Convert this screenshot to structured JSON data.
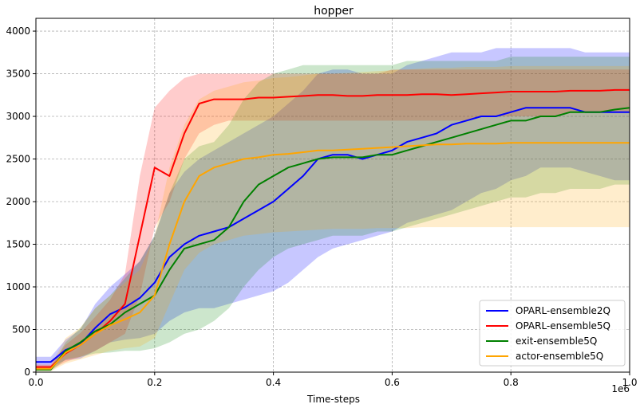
{
  "chart_data": {
    "type": "line",
    "title": "hopper",
    "xlabel": "Time-steps",
    "ylabel": "",
    "x_offset_label": "1e6",
    "xlim": [
      0,
      1.0
    ],
    "ylim": [
      0,
      4150
    ],
    "x_ticks": [
      0.0,
      0.2,
      0.4,
      0.6,
      0.8,
      1.0
    ],
    "x_tick_labels": [
      "0.0",
      "0.2",
      "0.4",
      "0.6",
      "0.8",
      "1.0"
    ],
    "y_ticks": [
      0,
      500,
      1000,
      1500,
      2000,
      2500,
      3000,
      3500,
      4000
    ],
    "y_tick_labels": [
      "0",
      "500",
      "1000",
      "1500",
      "2000",
      "2500",
      "3000",
      "3500",
      "4000"
    ],
    "grid": true,
    "legend_position": "lower-right",
    "x": [
      0.0,
      0.025,
      0.05,
      0.075,
      0.1,
      0.125,
      0.15,
      0.175,
      0.2,
      0.225,
      0.25,
      0.275,
      0.3,
      0.325,
      0.35,
      0.375,
      0.4,
      0.425,
      0.45,
      0.475,
      0.5,
      0.525,
      0.55,
      0.575,
      0.6,
      0.625,
      0.65,
      0.675,
      0.7,
      0.725,
      0.75,
      0.775,
      0.8,
      0.825,
      0.85,
      0.875,
      0.9,
      0.925,
      0.95,
      0.975,
      1.0
    ],
    "series": [
      {
        "name": "OPARL-ensemble2Q",
        "color": "#0000ff",
        "fill_opacity": 0.22,
        "values": [
          120,
          120,
          260,
          330,
          520,
          680,
          760,
          870,
          1050,
          1350,
          1500,
          1600,
          1650,
          1700,
          1800,
          1900,
          2000,
          2150,
          2300,
          2500,
          2550,
          2550,
          2500,
          2550,
          2600,
          2700,
          2750,
          2800,
          2900,
          2950,
          3000,
          3000,
          3050,
          3100,
          3100,
          3100,
          3100,
          3050,
          3050,
          3050,
          3050
        ],
        "lower": [
          60,
          60,
          140,
          160,
          250,
          350,
          380,
          400,
          450,
          600,
          700,
          750,
          750,
          800,
          850,
          900,
          950,
          1050,
          1200,
          1350,
          1450,
          1500,
          1550,
          1600,
          1650,
          1750,
          1800,
          1850,
          1900,
          2000,
          2100,
          2150,
          2250,
          2300,
          2400,
          2400,
          2400,
          2350,
          2300,
          2250,
          2250
        ],
        "upper": [
          180,
          180,
          380,
          500,
          800,
          1000,
          1150,
          1300,
          1600,
          2100,
          2350,
          2500,
          2600,
          2700,
          2800,
          2900,
          3000,
          3150,
          3300,
          3500,
          3550,
          3550,
          3500,
          3500,
          3500,
          3600,
          3650,
          3700,
          3750,
          3750,
          3750,
          3800,
          3800,
          3800,
          3800,
          3800,
          3800,
          3750,
          3750,
          3750,
          3750
        ]
      },
      {
        "name": "OPARL-ensemble5Q",
        "color": "#ff0000",
        "fill_opacity": 0.2,
        "values": [
          60,
          60,
          220,
          320,
          450,
          600,
          800,
          1600,
          2400,
          2300,
          2800,
          3150,
          3200,
          3200,
          3200,
          3220,
          3220,
          3230,
          3240,
          3250,
          3250,
          3240,
          3240,
          3250,
          3250,
          3250,
          3260,
          3260,
          3250,
          3260,
          3270,
          3280,
          3290,
          3290,
          3290,
          3290,
          3300,
          3300,
          3300,
          3310,
          3310
        ],
        "lower": [
          30,
          30,
          120,
          180,
          250,
          350,
          450,
          900,
          1700,
          2000,
          2500,
          2800,
          2900,
          2950,
          2950,
          2950,
          2950,
          2950,
          2950,
          2950,
          2950,
          2950,
          2950,
          2950,
          2950,
          2950,
          2950,
          2950,
          2950,
          2950,
          3000,
          3000,
          3000,
          3000,
          3000,
          3000,
          3050,
          3050,
          3050,
          3050,
          3050
        ],
        "upper": [
          90,
          90,
          320,
          460,
          650,
          850,
          1150,
          2300,
          3100,
          3300,
          3450,
          3500,
          3500,
          3500,
          3500,
          3500,
          3500,
          3500,
          3500,
          3500,
          3500,
          3500,
          3500,
          3500,
          3550,
          3550,
          3550,
          3550,
          3550,
          3550,
          3550,
          3550,
          3550,
          3550,
          3550,
          3550,
          3550,
          3550,
          3550,
          3550,
          3550
        ]
      },
      {
        "name": "exit-ensemble5Q",
        "color": "#008000",
        "fill_opacity": 0.2,
        "values": [
          30,
          30,
          250,
          350,
          480,
          560,
          700,
          800,
          900,
          1200,
          1450,
          1500,
          1550,
          1700,
          2000,
          2200,
          2300,
          2400,
          2450,
          2500,
          2520,
          2520,
          2520,
          2550,
          2550,
          2600,
          2650,
          2700,
          2750,
          2800,
          2850,
          2900,
          2950,
          2950,
          3000,
          3000,
          3050,
          3050,
          3050,
          3080,
          3100
        ],
        "lower": [
          10,
          10,
          150,
          180,
          220,
          230,
          250,
          250,
          280,
          350,
          450,
          500,
          600,
          750,
          1000,
          1200,
          1350,
          1450,
          1500,
          1550,
          1600,
          1600,
          1600,
          1650,
          1650,
          1700,
          1750,
          1800,
          1850,
          1900,
          1950,
          2000,
          2050,
          2050,
          2100,
          2100,
          2150,
          2150,
          2150,
          2200,
          2200
        ],
        "upper": [
          50,
          50,
          350,
          520,
          750,
          900,
          1100,
          1300,
          1600,
          2100,
          2500,
          2650,
          2700,
          2900,
          3200,
          3400,
          3500,
          3550,
          3600,
          3600,
          3600,
          3600,
          3600,
          3600,
          3600,
          3650,
          3650,
          3650,
          3650,
          3650,
          3650,
          3650,
          3700,
          3700,
          3700,
          3700,
          3700,
          3700,
          3700,
          3700,
          3700
        ]
      },
      {
        "name": "actor-ensemble5Q",
        "color": "#ffa500",
        "fill_opacity": 0.2,
        "values": [
          40,
          40,
          230,
          320,
          450,
          550,
          620,
          700,
          900,
          1500,
          2000,
          2300,
          2400,
          2450,
          2500,
          2520,
          2550,
          2560,
          2580,
          2600,
          2600,
          2610,
          2620,
          2630,
          2640,
          2650,
          2660,
          2670,
          2670,
          2680,
          2680,
          2680,
          2690,
          2690,
          2690,
          2690,
          2690,
          2690,
          2690,
          2690,
          2690
        ],
        "lower": [
          10,
          10,
          100,
          150,
          200,
          250,
          280,
          300,
          400,
          800,
          1200,
          1400,
          1500,
          1550,
          1600,
          1620,
          1640,
          1650,
          1660,
          1670,
          1680,
          1680,
          1680,
          1690,
          1690,
          1690,
          1700,
          1700,
          1700,
          1700,
          1700,
          1700,
          1700,
          1700,
          1700,
          1700,
          1700,
          1700,
          1700,
          1700,
          1700
        ],
        "upper": [
          80,
          80,
          400,
          520,
          750,
          900,
          1050,
          1200,
          1600,
          2400,
          2900,
          3200,
          3300,
          3350,
          3400,
          3420,
          3450,
          3460,
          3480,
          3500,
          3500,
          3510,
          3520,
          3530,
          3540,
          3550,
          3560,
          3570,
          3570,
          3580,
          3580,
          3580,
          3590,
          3590,
          3590,
          3590,
          3590,
          3590,
          3590,
          3590,
          3590
        ]
      }
    ]
  }
}
